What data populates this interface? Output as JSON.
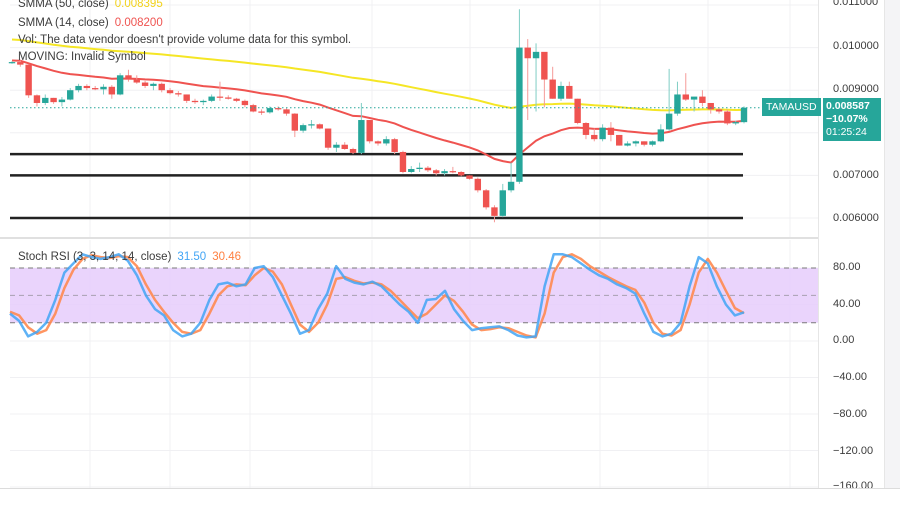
{
  "symbol": {
    "name": "TAMAUSD",
    "last_price": "0.008587",
    "change_pct": "−10.07%",
    "countdown": "01:25:24",
    "tag_color": "#26a69a"
  },
  "legend": {
    "smma50_label": "SMMA (50, close)",
    "smma50_value": "0.008395",
    "smma50_color": "#f5e625",
    "smma14_label": "SMMA (14, close)",
    "smma14_value": "0.008200",
    "smma14_color": "#ef5350",
    "vol_message": "Vol: The data vendor doesn't provide volume data for this symbol.",
    "moving_message": "MOVING: Invalid Symbol"
  },
  "oscillator": {
    "label": "Stoch RSI (3, 3, 14, 14, close)",
    "k_value": "31.50",
    "d_value": "30.46",
    "k_color": "#42a5f5",
    "d_color": "#ff7f3f",
    "band_color": "#e1c4fb"
  },
  "price_axis": {
    "ticks": [
      "0.011000",
      "0.010000",
      "0.009000",
      "0.007000",
      "0.006000"
    ]
  },
  "osc_axis": {
    "ticks": [
      "80.00",
      "40.00",
      "0.00",
      "−40.00",
      "−80.00",
      "−120.00",
      "−160.00"
    ]
  },
  "horizontal_levels": [
    "0.0075",
    "0.0070",
    "0.0060"
  ],
  "chart_data": {
    "type": "candlestick",
    "title": "TAMAUSD",
    "ylim": [
      0.00585,
      0.0111
    ],
    "horizontal_lines": [
      0.0075,
      0.007,
      0.006
    ],
    "last_price": 0.008587,
    "candles_ohlc": [
      [
        0.00965,
        0.00968,
        0.00962,
        0.00966
      ],
      [
        0.00966,
        0.0097,
        0.00955,
        0.0096
      ],
      [
        0.0096,
        0.0096,
        0.00882,
        0.00888
      ],
      [
        0.00888,
        0.0089,
        0.00862,
        0.0087
      ],
      [
        0.0087,
        0.0089,
        0.00865,
        0.00882
      ],
      [
        0.00882,
        0.00882,
        0.00868,
        0.00872
      ],
      [
        0.00872,
        0.00884,
        0.00862,
        0.00878
      ],
      [
        0.00878,
        0.00905,
        0.00876,
        0.009
      ],
      [
        0.009,
        0.00915,
        0.00895,
        0.0091
      ],
      [
        0.0091,
        0.00914,
        0.009,
        0.00905
      ],
      [
        0.00905,
        0.0091,
        0.009,
        0.00902
      ],
      [
        0.00902,
        0.00914,
        0.0089,
        0.00908
      ],
      [
        0.00908,
        0.00912,
        0.0088,
        0.0089
      ],
      [
        0.0089,
        0.0094,
        0.00888,
        0.00935
      ],
      [
        0.00935,
        0.00948,
        0.0092,
        0.00925
      ],
      [
        0.00925,
        0.00935,
        0.00915,
        0.00918
      ],
      [
        0.00918,
        0.00922,
        0.00905,
        0.0091
      ],
      [
        0.0091,
        0.00918,
        0.009,
        0.00915
      ],
      [
        0.00915,
        0.00918,
        0.00895,
        0.009
      ],
      [
        0.009,
        0.00905,
        0.0089,
        0.00893
      ],
      [
        0.00893,
        0.00898,
        0.00885,
        0.0089
      ],
      [
        0.0089,
        0.0089,
        0.0087,
        0.00875
      ],
      [
        0.00875,
        0.0088,
        0.00868,
        0.00872
      ],
      [
        0.00872,
        0.00878,
        0.00865,
        0.00875
      ],
      [
        0.00875,
        0.0089,
        0.00872,
        0.00885
      ],
      [
        0.00885,
        0.0092,
        0.00875,
        0.00883
      ],
      [
        0.00883,
        0.00888,
        0.00878,
        0.0088
      ],
      [
        0.0088,
        0.00882,
        0.00872,
        0.00875
      ],
      [
        0.00875,
        0.00878,
        0.0086,
        0.00865
      ],
      [
        0.00865,
        0.00868,
        0.00848,
        0.0085
      ],
      [
        0.0085,
        0.00855,
        0.00842,
        0.00848
      ],
      [
        0.00848,
        0.00862,
        0.00845,
        0.00858
      ],
      [
        0.00858,
        0.00862,
        0.00852,
        0.00855
      ],
      [
        0.00855,
        0.00858,
        0.0084,
        0.00845
      ],
      [
        0.00845,
        0.00846,
        0.0079,
        0.00805
      ],
      [
        0.00805,
        0.00822,
        0.008,
        0.00818
      ],
      [
        0.00818,
        0.0083,
        0.0081,
        0.0082
      ],
      [
        0.0082,
        0.00822,
        0.00808,
        0.0081
      ],
      [
        0.0081,
        0.0081,
        0.0076,
        0.00765
      ],
      [
        0.00765,
        0.00778,
        0.00755,
        0.00772
      ],
      [
        0.00772,
        0.00778,
        0.0076,
        0.00762
      ],
      [
        0.00762,
        0.00765,
        0.0075,
        0.00753
      ],
      [
        0.00753,
        0.0087,
        0.0075,
        0.0083
      ],
      [
        0.0083,
        0.0083,
        0.00775,
        0.0078
      ],
      [
        0.0078,
        0.00782,
        0.0077,
        0.00775
      ],
      [
        0.00775,
        0.00792,
        0.0077,
        0.00785
      ],
      [
        0.00785,
        0.00788,
        0.0075,
        0.00755
      ],
      [
        0.00755,
        0.00758,
        0.00705,
        0.00708
      ],
      [
        0.00708,
        0.00722,
        0.00705,
        0.00715
      ],
      [
        0.00715,
        0.0073,
        0.00708,
        0.00718
      ],
      [
        0.00718,
        0.00722,
        0.00708,
        0.00712
      ],
      [
        0.00712,
        0.00715,
        0.007,
        0.00705
      ],
      [
        0.00705,
        0.00715,
        0.007,
        0.0071
      ],
      [
        0.0071,
        0.0072,
        0.00705,
        0.00708
      ],
      [
        0.00708,
        0.0071,
        0.00698,
        0.007
      ],
      [
        0.007,
        0.007,
        0.0069,
        0.00692
      ],
      [
        0.00692,
        0.00695,
        0.0066,
        0.00665
      ],
      [
        0.00665,
        0.00668,
        0.0062,
        0.00625
      ],
      [
        0.00625,
        0.0063,
        0.0059,
        0.00605
      ],
      [
        0.00605,
        0.0068,
        0.00602,
        0.00665
      ],
      [
        0.00665,
        0.0073,
        0.0066,
        0.00685
      ],
      [
        0.00685,
        0.0109,
        0.0068,
        0.01
      ],
      [
        0.01,
        0.0102,
        0.0083,
        0.00975
      ],
      [
        0.00975,
        0.0101,
        0.0085,
        0.0099
      ],
      [
        0.0099,
        0.0096,
        0.0086,
        0.00925
      ],
      [
        0.00925,
        0.00955,
        0.0088,
        0.0088
      ],
      [
        0.0088,
        0.0092,
        0.00875,
        0.0091
      ],
      [
        0.0091,
        0.0092,
        0.0088,
        0.0088
      ],
      [
        0.0088,
        0.0088,
        0.0082,
        0.00823
      ],
      [
        0.00823,
        0.00825,
        0.00785,
        0.00795
      ],
      [
        0.00795,
        0.0081,
        0.0078,
        0.00785
      ],
      [
        0.00785,
        0.0082,
        0.0078,
        0.00812
      ],
      [
        0.00812,
        0.00825,
        0.0078,
        0.00795
      ],
      [
        0.00795,
        0.00795,
        0.0077,
        0.0077
      ],
      [
        0.0077,
        0.0078,
        0.00768,
        0.00775
      ],
      [
        0.00775,
        0.00782,
        0.00768,
        0.0078
      ],
      [
        0.0078,
        0.0078,
        0.00768,
        0.00772
      ],
      [
        0.00772,
        0.00782,
        0.00768,
        0.0078
      ],
      [
        0.0078,
        0.0082,
        0.00778,
        0.00808
      ],
      [
        0.00808,
        0.0095,
        0.00805,
        0.00845
      ],
      [
        0.00845,
        0.0092,
        0.0084,
        0.0089
      ],
      [
        0.0089,
        0.0094,
        0.00875,
        0.00878
      ],
      [
        0.00878,
        0.0088,
        0.0085,
        0.00885
      ],
      [
        0.00885,
        0.009,
        0.00862,
        0.0087
      ],
      [
        0.0087,
        0.0087,
        0.00845,
        0.00855
      ],
      [
        0.00855,
        0.00858,
        0.00845,
        0.0085
      ],
      [
        0.0085,
        0.00855,
        0.00818,
        0.00822
      ],
      [
        0.00822,
        0.00828,
        0.00818,
        0.00825
      ],
      [
        0.00825,
        0.00862,
        0.00822,
        0.00859
      ]
    ],
    "series": [
      {
        "name": "SMMA (50, close)",
        "color": "#f5e625",
        "last": 0.008395
      },
      {
        "name": "SMMA (14, close)",
        "color": "#ef5350",
        "last": 0.0082
      }
    ],
    "oscillator": {
      "name": "Stoch RSI (3, 3, 14, 14, close)",
      "ylim": [
        -160,
        100
      ],
      "bands": [
        20,
        50,
        80
      ],
      "k_last": 31.5,
      "d_last": 30.46,
      "k_series": [
        30,
        22,
        5,
        10,
        20,
        45,
        75,
        85,
        95,
        92,
        90,
        92,
        95,
        88,
        72,
        50,
        35,
        28,
        12,
        5,
        8,
        20,
        45,
        62,
        64,
        60,
        62,
        80,
        82,
        70,
        50,
        30,
        8,
        12,
        35,
        52,
        82,
        68,
        64,
        62,
        65,
        60,
        50,
        40,
        32,
        20,
        45,
        46,
        55,
        35,
        22,
        12,
        14,
        15,
        16,
        12,
        6,
        4,
        5,
        60,
        95,
        95,
        92,
        85,
        78,
        72,
        68,
        62,
        58,
        52,
        30,
        10,
        5,
        8,
        20,
        60,
        92,
        85,
        60,
        40,
        28,
        31.5
      ],
      "d_series": [
        32,
        28,
        15,
        8,
        12,
        30,
        58,
        78,
        90,
        94,
        92,
        91,
        93,
        92,
        82,
        62,
        45,
        32,
        20,
        10,
        8,
        12,
        30,
        50,
        60,
        62,
        61,
        72,
        80,
        76,
        62,
        40,
        18,
        10,
        20,
        40,
        68,
        70,
        66,
        63,
        64,
        62,
        55,
        45,
        35,
        25,
        30,
        40,
        50,
        44,
        32,
        18,
        12,
        13,
        15,
        14,
        10,
        6,
        4,
        30,
        75,
        92,
        95,
        90,
        82,
        76,
        70,
        65,
        60,
        56,
        42,
        20,
        8,
        6,
        12,
        40,
        75,
        90,
        75,
        55,
        36,
        30.46
      ]
    }
  }
}
